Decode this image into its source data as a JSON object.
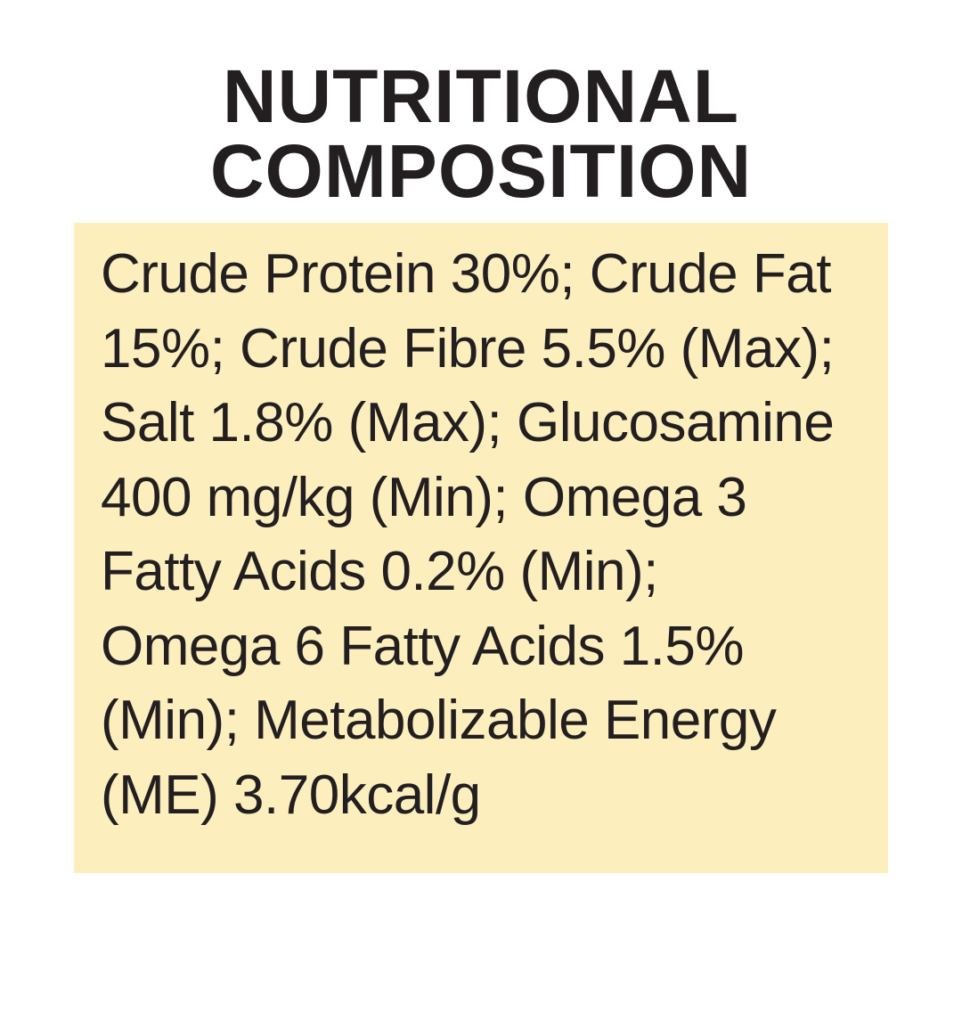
{
  "colors": {
    "page_background": "#ffffff",
    "panel_background": "#fceebd",
    "title_text": "#231f20",
    "body_text": "#231f20"
  },
  "title": {
    "lines": [
      "NUTRITIONAL",
      "COMPOSITION"
    ]
  },
  "panel": {
    "lines": [
      "Crude Protein 30%; Crude Fat",
      "15%; Crude Fibre 5.5% (Max);",
      "Salt 1.8% (Max); Glucosamine",
      "400 mg/kg (Min); Omega 3",
      "Fatty Acids 0.2% (Min);",
      "Omega 6 Fatty Acids 1.5%",
      "(Min); Metabolizable Energy",
      "(ME) 3.70kcal/g"
    ],
    "nutrients": [
      {
        "name": "Crude Protein",
        "value": "30%"
      },
      {
        "name": "Crude Fat",
        "value": "15%"
      },
      {
        "name": "Crude Fibre",
        "value": "5.5% (Max)"
      },
      {
        "name": "Salt",
        "value": "1.8% (Max)"
      },
      {
        "name": "Glucosamine",
        "value": "400 mg/kg (Min)"
      },
      {
        "name": "Omega 3 Fatty Acids",
        "value": "0.2% (Min)"
      },
      {
        "name": "Omega 6 Fatty Acids",
        "value": "1.5% (Min)"
      },
      {
        "name": "Metabolizable Energy (ME)",
        "value": "3.70kcal/g"
      }
    ]
  }
}
